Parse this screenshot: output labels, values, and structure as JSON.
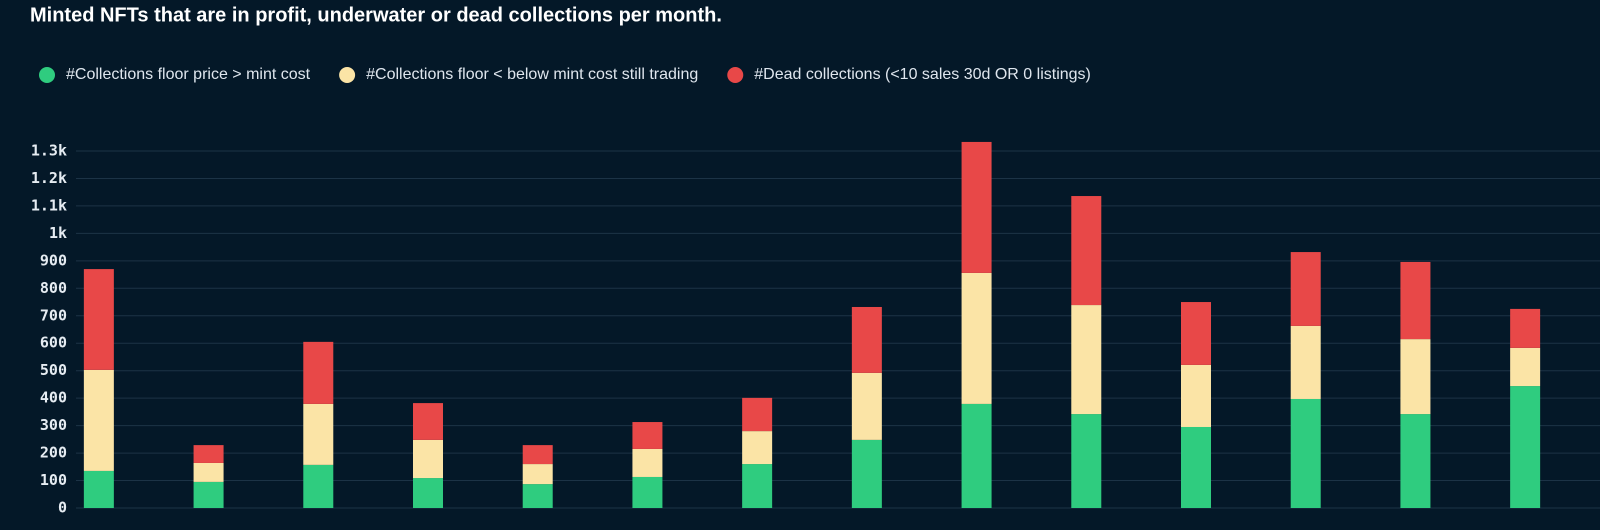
{
  "chart_data": {
    "type": "stacked_bar",
    "title": "Minted NFTs that are in profit, underwater or dead collections per month.",
    "categories": [
      null,
      null,
      null,
      null,
      null,
      null,
      null,
      null,
      null,
      null,
      null,
      null,
      null,
      null
    ],
    "series": [
      {
        "name": "#Collections floor price > mint cost",
        "color": "#2fcc7f",
        "values": [
          135,
          95,
          157,
          109,
          87,
          113,
          160,
          248,
          379,
          342,
          295,
          397,
          342,
          444
        ]
      },
      {
        "name": "#Collections floor < below mint cost still trading",
        "color": "#fbe4a6",
        "values": [
          368,
          69,
          222,
          139,
          73,
          102,
          120,
          244,
          477,
          397,
          226,
          266,
          273,
          139
        ]
      },
      {
        "name": "#Dead collections (<10 sales 30d OR 0 listings)",
        "color": "#e84848",
        "values": [
          367,
          65,
          226,
          134,
          69,
          98,
          121,
          240,
          477,
          397,
          229,
          269,
          281,
          142
        ]
      }
    ],
    "ylim": [
      0,
      1400
    ],
    "yticks": [
      0,
      100,
      200,
      300,
      400,
      500,
      600,
      700,
      800,
      900,
      {
        "value": 1000,
        "label": "1k"
      },
      {
        "value": 1100,
        "label": "1.1k"
      },
      {
        "value": 1200,
        "label": "1.2k"
      },
      {
        "value": 1300,
        "label": "1.3k"
      }
    ],
    "grid": true,
    "legend": "top"
  }
}
